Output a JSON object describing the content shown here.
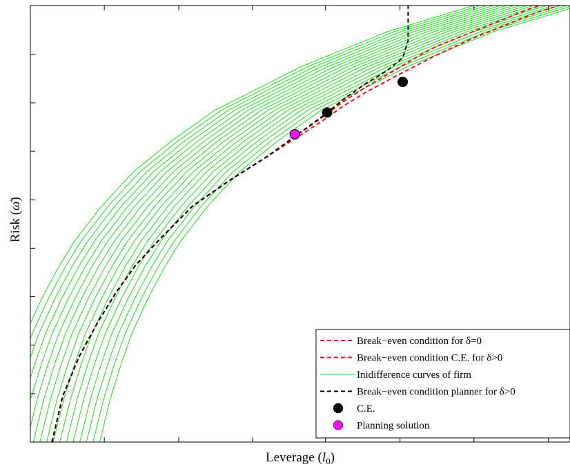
{
  "chart_data": {
    "type": "line",
    "title": "",
    "xlabel": "Leverage",
    "xlabel_symbol": "l",
    "xlabel_subscript": "0",
    "ylabel": "Risk",
    "ylabel_symbol": "ω̄",
    "xlim": [
      0,
      1
    ],
    "ylim": [
      0,
      1
    ],
    "x_ticks": [
      0.137,
      0.275,
      0.412,
      0.547,
      0.685,
      0.822,
      0.96
    ],
    "y_ticks": [
      0.111,
      0.222,
      0.333,
      0.444,
      0.555,
      0.666,
      0.777,
      0.888
    ],
    "grid": false,
    "legend_position": "bottom-right",
    "colors": {
      "red": "#e8101a",
      "green": "#22dd22",
      "black": "#000000",
      "magenta": "#ee11ee"
    },
    "indifference_curves": {
      "count": 17,
      "offset_step": 0.0123,
      "base": {
        "x": [
          0.03,
          0.05,
          0.07,
          0.09,
          0.12,
          0.15,
          0.18,
          0.23,
          0.29,
          0.36,
          0.44,
          0.52,
          0.6,
          0.68,
          0.76,
          0.84,
          0.92,
          1.0
        ],
        "y": [
          0.0,
          0.1,
          0.18,
          0.25,
          0.33,
          0.4,
          0.46,
          0.54,
          0.62,
          0.69,
          0.76,
          0.81,
          0.86,
          0.9,
          0.94,
          0.97,
          1.0,
          1.02
        ]
      }
    },
    "series": [
      {
        "name": "Break−even condition for δ=0",
        "style": "dashed",
        "color": "#e8101a",
        "x": [
          0.04,
          0.06,
          0.09,
          0.125,
          0.16,
          0.195,
          0.24,
          0.3,
          0.37,
          0.44,
          0.49,
          0.54,
          0.58,
          0.62,
          0.68,
          0.75,
          0.82,
          0.88,
          0.94,
          0.98
        ],
        "y": [
          0.0,
          0.105,
          0.195,
          0.275,
          0.345,
          0.405,
          0.465,
          0.54,
          0.6,
          0.655,
          0.695,
          0.735,
          0.77,
          0.8,
          0.84,
          0.885,
          0.925,
          0.955,
          0.985,
          1.0
        ]
      },
      {
        "name": "Break−even condition C.E. for δ>0",
        "style": "dashed",
        "color": "#e8101a",
        "x": [
          0.04,
          0.06,
          0.09,
          0.125,
          0.16,
          0.195,
          0.24,
          0.3,
          0.37,
          0.44,
          0.49,
          0.54,
          0.58,
          0.62,
          0.68,
          0.72,
          0.75,
          0.8,
          0.86,
          0.92,
          0.97,
          1.0
        ],
        "y": [
          0.0,
          0.105,
          0.195,
          0.275,
          0.345,
          0.405,
          0.465,
          0.54,
          0.6,
          0.655,
          0.7,
          0.743,
          0.78,
          0.812,
          0.855,
          0.885,
          0.905,
          0.93,
          0.96,
          0.99,
          1.01,
          1.02
        ]
      },
      {
        "name": "Inidifference curves of firm",
        "style": "solid",
        "color": "#22dd22",
        "x": [],
        "y": []
      },
      {
        "name": "Break−even condition planner for δ>0",
        "style": "dashed",
        "color": "#000000",
        "x": [
          0.04,
          0.06,
          0.09,
          0.125,
          0.16,
          0.195,
          0.24,
          0.3,
          0.37,
          0.44,
          0.49,
          0.54,
          0.58,
          0.62,
          0.66,
          0.69,
          0.7,
          0.7
        ],
        "y": [
          0.0,
          0.105,
          0.195,
          0.275,
          0.345,
          0.405,
          0.465,
          0.54,
          0.6,
          0.655,
          0.7,
          0.745,
          0.785,
          0.82,
          0.85,
          0.88,
          0.92,
          1.0
        ]
      }
    ],
    "markers": [
      {
        "name": "C.E.",
        "color": "#000000",
        "x": [
          0.55,
          0.69
        ],
        "y": [
          0.755,
          0.825
        ]
      },
      {
        "name": "Planning solution",
        "color": "#ee11ee",
        "x": [
          0.49
        ],
        "y": [
          0.705
        ]
      }
    ],
    "legend": [
      {
        "label": "Break−even condition for δ=0",
        "kind": "dashed",
        "color": "#e8101a"
      },
      {
        "label": "Break−even condition C.E. for δ>0",
        "kind": "dashed",
        "color": "#e8101a"
      },
      {
        "label": "Inidifference curves of firm",
        "kind": "solid",
        "color": "#22dd22"
      },
      {
        "label": "Break−even condition planner for δ>0",
        "kind": "dashed",
        "color": "#000000"
      },
      {
        "label": "C.E.",
        "kind": "marker",
        "color": "#000000"
      },
      {
        "label": "Planning solution",
        "kind": "marker",
        "color": "#ee11ee"
      }
    ]
  }
}
